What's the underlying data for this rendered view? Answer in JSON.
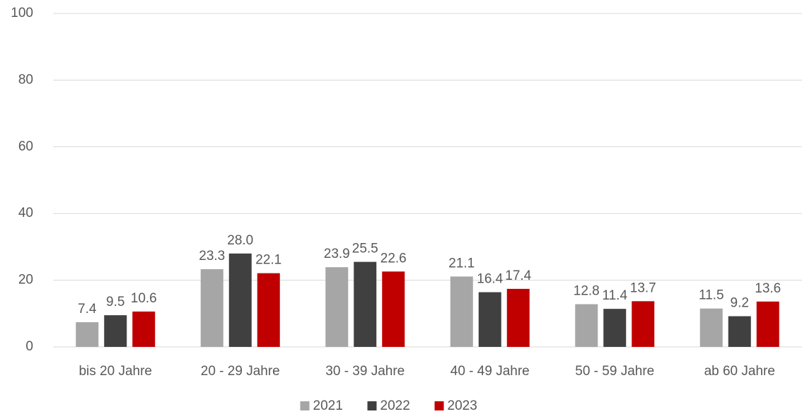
{
  "chart_data": {
    "type": "bar",
    "categories": [
      "bis 20 Jahre",
      "20 - 29 Jahre",
      "30 - 39 Jahre",
      "40 - 49 Jahre",
      "50  - 59 Jahre",
      "ab 60 Jahre"
    ],
    "series": [
      {
        "name": "2021",
        "color": "#a6a6a6",
        "values": [
          7.4,
          23.3,
          23.9,
          21.1,
          12.8,
          11.5
        ],
        "value_labels": [
          "7.4",
          "23.3",
          "23.9",
          "21.1",
          "12.8",
          "11.5"
        ]
      },
      {
        "name": "2022",
        "color": "#404040",
        "values": [
          9.5,
          28.0,
          25.5,
          16.4,
          11.4,
          9.2
        ],
        "value_labels": [
          "9.5",
          "28.0",
          "25.5",
          "16.4",
          "11.4",
          "9.2"
        ]
      },
      {
        "name": "2023",
        "color": "#c00000",
        "values": [
          10.6,
          22.1,
          22.6,
          17.4,
          13.7,
          13.6
        ],
        "value_labels": [
          "10.6",
          "22.1",
          "22.6",
          "17.4",
          "13.7",
          "13.6"
        ]
      }
    ],
    "ylim": [
      0,
      100
    ],
    "yticks": [
      0,
      20,
      40,
      60,
      80,
      100
    ],
    "grid": true,
    "legend": "bottom"
  }
}
